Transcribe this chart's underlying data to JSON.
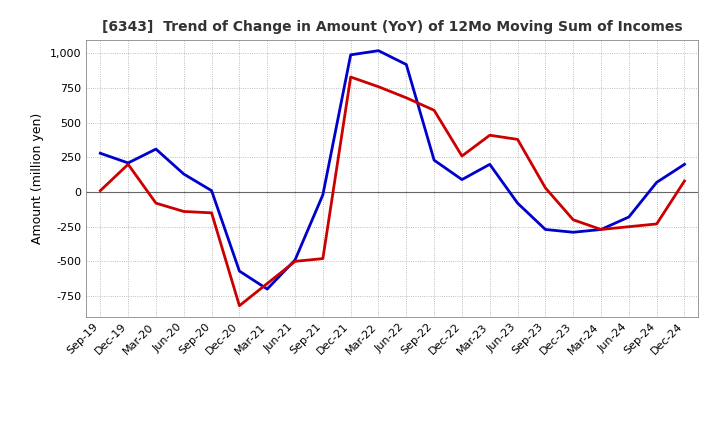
{
  "title": "[6343]  Trend of Change in Amount (YoY) of 12Mo Moving Sum of Incomes",
  "ylabel": "Amount (million yen)",
  "x_labels": [
    "Sep-19",
    "Dec-19",
    "Mar-20",
    "Jun-20",
    "Sep-20",
    "Dec-20",
    "Mar-21",
    "Jun-21",
    "Sep-21",
    "Dec-21",
    "Mar-22",
    "Jun-22",
    "Sep-22",
    "Dec-22",
    "Mar-23",
    "Jun-23",
    "Sep-23",
    "Dec-23",
    "Mar-24",
    "Jun-24",
    "Sep-24",
    "Dec-24"
  ],
  "ordinary_income": [
    280,
    210,
    310,
    130,
    10,
    -570,
    -700,
    -490,
    -20,
    990,
    1020,
    920,
    230,
    90,
    200,
    -80,
    -270,
    -290,
    -270,
    -180,
    70,
    200
  ],
  "net_income": [
    10,
    200,
    -80,
    -140,
    -150,
    -820,
    -660,
    -500,
    -480,
    830,
    760,
    680,
    590,
    260,
    410,
    380,
    30,
    -200,
    -270,
    -250,
    -230,
    80
  ],
  "ordinary_color": "#0000cc",
  "net_color": "#cc0000",
  "ylim": [
    -900,
    1100
  ],
  "yticks": [
    -750,
    -500,
    -250,
    0,
    250,
    500,
    750,
    1000
  ],
  "background_color": "#ffffff",
  "grid_color": "#aaaaaa",
  "line_width": 2.0,
  "title_color": "#333333"
}
